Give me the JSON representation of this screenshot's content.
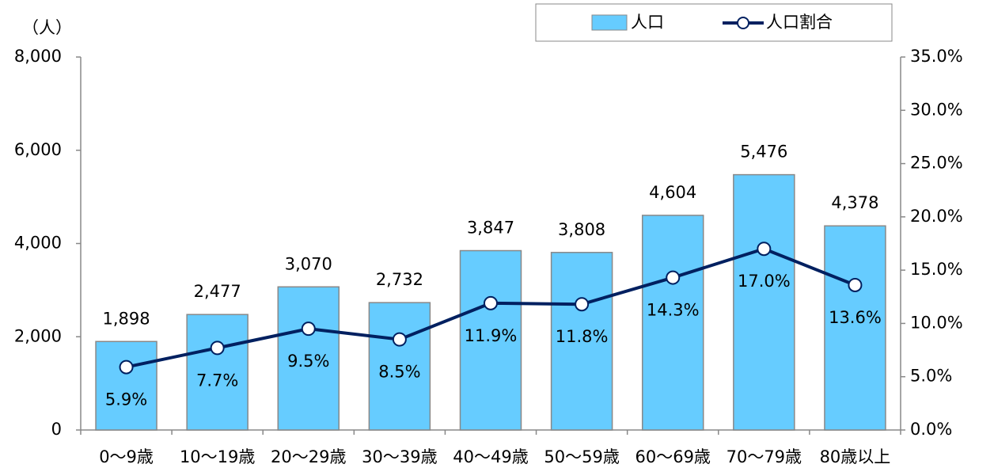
{
  "chart_data": {
    "type": "combo",
    "y_unit_label": "（人）",
    "categories": [
      "0～9歳",
      "10～19歳",
      "20～29歳",
      "30～39歳",
      "40～49歳",
      "50～59歳",
      "60～69歳",
      "70～79歳",
      "80歳以上"
    ],
    "series": [
      {
        "name": "人口",
        "mark": "bar",
        "color": "#66ccff",
        "values": [
          1898,
          2477,
          3070,
          2732,
          3847,
          3808,
          4604,
          5476,
          4378
        ],
        "value_labels": [
          "1,898",
          "2,477",
          "3,070",
          "2,732",
          "3,847",
          "3,808",
          "4,604",
          "5,476",
          "4,378"
        ]
      },
      {
        "name": "人口割合",
        "mark": "line",
        "axis": "y2",
        "color": "#002060",
        "values": [
          5.9,
          7.7,
          9.5,
          8.5,
          11.9,
          11.8,
          14.3,
          17.0,
          13.6
        ],
        "value_labels": [
          "5.9%",
          "7.7%",
          "9.5%",
          "8.5%",
          "11.9%",
          "11.8%",
          "14.3%",
          "17.0%",
          "13.6%"
        ]
      }
    ],
    "ylim": [
      0,
      8000
    ],
    "yticks": [
      0,
      {
        "value": 2000,
        "label": "2,000"
      },
      {
        "value": 4000,
        "label": "4,000"
      },
      {
        "value": 6000,
        "label": "6,000"
      },
      {
        "value": 8000,
        "label": "8,000"
      }
    ],
    "y2lim": [
      0,
      35
    ],
    "y2ticks": [
      {
        "value": 0,
        "label": "0.0%"
      },
      {
        "value": 5,
        "label": "5.0%"
      },
      {
        "value": 10,
        "label": "10.0%"
      },
      {
        "value": 15,
        "label": "15.0%"
      },
      {
        "value": 20,
        "label": "20.0%"
      },
      {
        "value": 25,
        "label": "25.0%"
      },
      {
        "value": 30,
        "label": "30.0%"
      },
      {
        "value": 35,
        "label": "35.0%"
      }
    ],
    "legend": "top-right",
    "grid": false
  }
}
